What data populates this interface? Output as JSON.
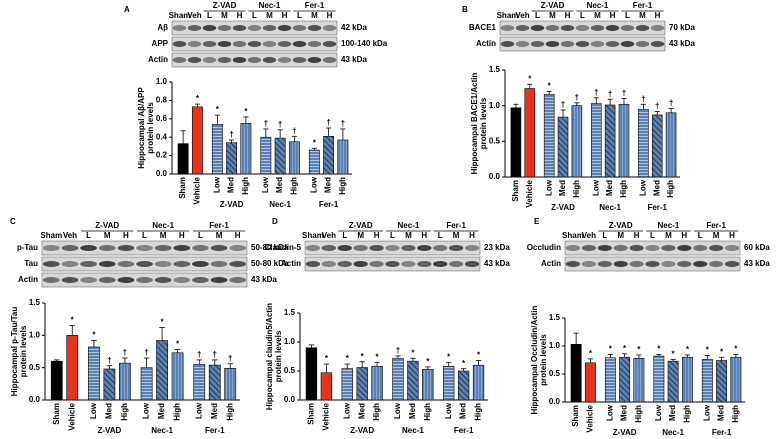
{
  "chart_data": [
    {
      "type": "bar",
      "panel": "A",
      "blot": {
        "lanes": [
          "Sham",
          "Veh"
        ],
        "lane_groups": [
          "Z-VAD",
          "Nec-1",
          "Fer-1"
        ],
        "lane_sub": [
          "L",
          "M",
          "H"
        ],
        "rows": [
          {
            "label": "Aβ",
            "kda": "42 kDa"
          },
          {
            "label": "APP",
            "kda": "100-140 kDa"
          },
          {
            "label": "Actin",
            "kda": "43 kDa"
          }
        ]
      },
      "ylabel": [
        "Hippocampal Aβ/APP",
        "protein levels"
      ],
      "categories": [
        "Sham",
        "Vehicle",
        "Low",
        "Med",
        "High",
        "Low",
        "Med",
        "High",
        "Low",
        "Med",
        "High"
      ],
      "groups": [
        "Z-VAD",
        "Nec-1",
        "Fer-1"
      ],
      "values": [
        0.33,
        0.73,
        0.54,
        0.34,
        0.55,
        0.4,
        0.39,
        0.35,
        0.26,
        0.41,
        0.37
      ],
      "errors": [
        0.14,
        0.03,
        0.1,
        0.03,
        0.07,
        0.09,
        0.09,
        0.06,
        0.02,
        0.09,
        0.12
      ],
      "annotations": [
        null,
        "*",
        "*",
        "†",
        "*",
        "†",
        "†",
        "†",
        "*",
        "†",
        "†"
      ],
      "colors": [
        "#000000",
        "#e8331c",
        "#5b80b3",
        "#5b80b3",
        "#5b80b3",
        "#5b80b3",
        "#5b80b3",
        "#5b80b3",
        "#5b80b3",
        "#5b80b3",
        "#5b80b3"
      ],
      "ylim": [
        0,
        1.0
      ],
      "yticks": [
        {
          "value": 0,
          "label": "0.0"
        },
        {
          "value": 0.2,
          "label": "0.2"
        },
        {
          "value": 0.4,
          "label": "0.4"
        },
        {
          "value": 0.6,
          "label": "0.6"
        },
        {
          "value": 0.8,
          "label": "0.8"
        },
        {
          "value": 1.0,
          "label": "1.0"
        }
      ]
    },
    {
      "type": "bar",
      "panel": "B",
      "blot": {
        "lanes": [
          "Sham",
          "Veh"
        ],
        "lane_groups": [
          "Z-VAD",
          "Nec-1",
          "Fer-1"
        ],
        "lane_sub": [
          "L",
          "M",
          "H"
        ],
        "rows": [
          {
            "label": "BACE1",
            "kda": "70 kDa"
          },
          {
            "label": "Actin",
            "kda": "43 kDa"
          }
        ]
      },
      "ylabel": [
        "Hippocampal BACE1/Actin",
        "protein levels"
      ],
      "categories": [
        "Sham",
        "Vehicle",
        "Low",
        "Med",
        "High",
        "Low",
        "Med",
        "High",
        "Low",
        "Med",
        "High"
      ],
      "groups": [
        "Z-VAD",
        "Nec-1",
        "Fer-1"
      ],
      "values": [
        0.97,
        1.24,
        1.16,
        0.84,
        1.0,
        1.03,
        1.01,
        1.02,
        0.95,
        0.87,
        0.9
      ],
      "errors": [
        0.05,
        0.06,
        0.04,
        0.1,
        0.04,
        0.08,
        0.08,
        0.08,
        0.07,
        0.05,
        0.06
      ],
      "annotations": [
        null,
        "*",
        "*",
        "†",
        "†",
        "†",
        "†",
        "†",
        "†",
        "†",
        "†"
      ],
      "colors": [
        "#000000",
        "#e8331c",
        "#5b80b3",
        "#5b80b3",
        "#5b80b3",
        "#5b80b3",
        "#5b80b3",
        "#5b80b3",
        "#5b80b3",
        "#5b80b3",
        "#5b80b3"
      ],
      "ylim": [
        0,
        1.5
      ],
      "yticks": [
        {
          "value": 0,
          "label": "0.0"
        },
        0.5,
        {
          "value": 1.0,
          "label": "1.0"
        },
        1.5
      ]
    },
    {
      "type": "bar",
      "panel": "C",
      "blot": {
        "lanes": [
          "Sham",
          "Veh"
        ],
        "lane_groups": [
          "Z-VAD",
          "Nec-1",
          "Fer-1"
        ],
        "lane_sub": [
          "L",
          "M",
          "H"
        ],
        "rows": [
          {
            "label": "p-Tau",
            "kda": "50-80 kDa"
          },
          {
            "label": "Tau",
            "kda": "50-80 kDa"
          },
          {
            "label": "Actin",
            "kda": "43 kDa"
          }
        ]
      },
      "ylabel": [
        "Hippocampal p-Tau/Tau",
        "protein levels"
      ],
      "categories": [
        "Sham",
        "Vehicle",
        "Low",
        "Med",
        "High",
        "Low",
        "Med",
        "High",
        "Low",
        "Med",
        "High"
      ],
      "groups": [
        "Z-VAD",
        "Nec-1",
        "Fer-1"
      ],
      "values": [
        0.6,
        1.0,
        0.82,
        0.48,
        0.57,
        0.5,
        0.92,
        0.73,
        0.55,
        0.54,
        0.49
      ],
      "errors": [
        0.02,
        0.15,
        0.1,
        0.05,
        0.08,
        0.15,
        0.2,
        0.05,
        0.07,
        0.08,
        0.07
      ],
      "annotations": [
        null,
        "*",
        "*",
        "†",
        "†",
        "†",
        "*",
        "*",
        "†",
        "†",
        "†"
      ],
      "colors": [
        "#000000",
        "#e8331c",
        "#5b80b3",
        "#5b80b3",
        "#5b80b3",
        "#5b80b3",
        "#5b80b3",
        "#5b80b3",
        "#5b80b3",
        "#5b80b3",
        "#5b80b3"
      ],
      "ylim": [
        0,
        1.5
      ],
      "yticks": [
        {
          "value": 0,
          "label": "0.0"
        },
        0.5,
        {
          "value": 1.0,
          "label": "1.0"
        },
        1.5
      ]
    },
    {
      "type": "bar",
      "panel": "D",
      "blot": {
        "lanes": [
          "Sham",
          "Veh"
        ],
        "lane_groups": [
          "Z-VAD",
          "Nec-1",
          "Fer-1"
        ],
        "lane_sub": [
          "L",
          "M",
          "H"
        ],
        "rows": [
          {
            "label": "Claudin-5",
            "kda": "23 kDa"
          },
          {
            "label": "Actin",
            "kda": "43 kDa"
          }
        ]
      },
      "ylabel": [
        "Hippocampal claudin5/Actin",
        "protein levels"
      ],
      "categories": [
        "Sham",
        "Vehicle",
        "Low",
        "Med",
        "High",
        "Low",
        "Med",
        "High",
        "Low",
        "Med",
        "High"
      ],
      "groups": [
        "Z-VAD",
        "Nec-1",
        "Fer-1"
      ],
      "values": [
        0.9,
        0.47,
        0.54,
        0.56,
        0.58,
        0.72,
        0.67,
        0.53,
        0.58,
        0.5,
        0.6
      ],
      "errors": [
        0.05,
        0.15,
        0.08,
        0.1,
        0.07,
        0.04,
        0.05,
        0.04,
        0.07,
        0.04,
        0.08
      ],
      "annotations": [
        null,
        "*",
        "*",
        "*",
        "*",
        "†",
        "*",
        "*",
        "*",
        "*",
        "*"
      ],
      "colors": [
        "#000000",
        "#e8331c",
        "#5b80b3",
        "#5b80b3",
        "#5b80b3",
        "#5b80b3",
        "#5b80b3",
        "#5b80b3",
        "#5b80b3",
        "#5b80b3",
        "#5b80b3"
      ],
      "ylim": [
        0,
        1.5
      ],
      "yticks": [
        {
          "value": 0,
          "label": "0.0"
        },
        0.5,
        {
          "value": 1.0,
          "label": "1.0"
        },
        1.5
      ]
    },
    {
      "type": "bar",
      "panel": "E",
      "blot": {
        "lanes": [
          "Sham",
          "Veh"
        ],
        "lane_groups": [
          "Z-VAD",
          "Nec-1",
          "Fer-1"
        ],
        "lane_sub": [
          "L",
          "M",
          "H"
        ],
        "rows": [
          {
            "label": "Occludin",
            "kda": "60 kDa"
          },
          {
            "label": "Actin",
            "kda": "43 kDa"
          }
        ]
      },
      "ylabel": [
        "Hippocampal Occludin/Actin",
        "protein levels"
      ],
      "categories": [
        "Sham",
        "Vehicle",
        "Low",
        "Med",
        "High",
        "Low",
        "Med",
        "High",
        "Low",
        "Med",
        "High"
      ],
      "groups": [
        "Z-VAD",
        "Nec-1",
        "Fer-1"
      ],
      "values": [
        1.03,
        0.7,
        0.79,
        0.8,
        0.78,
        0.82,
        0.73,
        0.8,
        0.76,
        0.74,
        0.8
      ],
      "errors": [
        0.2,
        0.07,
        0.06,
        0.06,
        0.06,
        0.03,
        0.03,
        0.04,
        0.07,
        0.06,
        0.05
      ],
      "annotations": [
        null,
        "*",
        "*",
        "*",
        "*",
        "*",
        "*",
        "*",
        "*",
        "*",
        "*"
      ],
      "colors": [
        "#000000",
        "#e8331c",
        "#5b80b3",
        "#5b80b3",
        "#5b80b3",
        "#5b80b3",
        "#5b80b3",
        "#5b80b3",
        "#5b80b3",
        "#5b80b3",
        "#5b80b3"
      ],
      "ylim": [
        0,
        1.5
      ],
      "yticks": [
        {
          "value": 0,
          "label": "0.0"
        },
        0.5,
        {
          "value": 1.0,
          "label": "1.0"
        },
        1.5
      ]
    }
  ]
}
